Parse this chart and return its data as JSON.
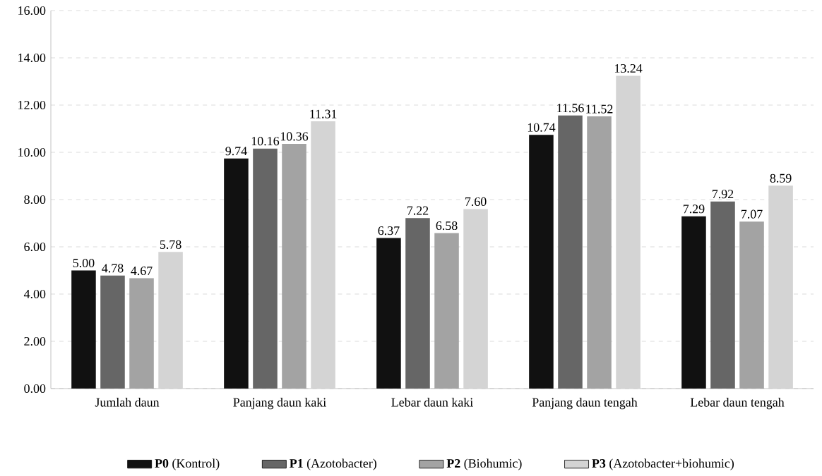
{
  "chart_data": {
    "type": "bar",
    "categories": [
      "Jumlah daun",
      "Panjang daun kaki",
      "Lebar daun kaki",
      "Panjang daun tengah",
      "Lebar daun tengah"
    ],
    "series": [
      {
        "name": "**P0** (Kontrol)",
        "color": "#111111",
        "values": [
          5.0,
          9.74,
          6.37,
          10.74,
          7.29
        ],
        "value_labels": [
          "5.00",
          "9.74",
          "6.37",
          "10.74",
          "7.29"
        ]
      },
      {
        "name": "**P1** (Azotobacter)",
        "color": "#666666",
        "values": [
          4.78,
          10.16,
          7.22,
          11.56,
          7.92
        ],
        "value_labels": [
          "4.78",
          "10.16",
          "7.22",
          "11.56",
          "7.92"
        ]
      },
      {
        "name": "**P2** (Biohumic)",
        "color": "#a3a3a3",
        "values": [
          4.67,
          10.36,
          6.58,
          11.52,
          7.07
        ],
        "value_labels": [
          "4.67",
          "10.36",
          "6.58",
          "11.52",
          "7.07"
        ]
      },
      {
        "name": "**P3** (Azotobacter+biohumic)",
        "color": "#d4d4d4",
        "values": [
          5.78,
          11.31,
          7.6,
          13.24,
          8.59
        ],
        "value_labels": [
          "5.78",
          "11.31",
          "7.60",
          "13.24",
          "8.59"
        ]
      }
    ],
    "ylim": [
      0,
      16
    ],
    "yticks": [
      {
        "value": 0,
        "label": "0.00"
      },
      {
        "value": 2,
        "label": "2.00"
      },
      {
        "value": 4,
        "label": "4.00"
      },
      {
        "value": 6,
        "label": "6.00"
      },
      {
        "value": 8,
        "label": "8.00"
      },
      {
        "value": 10,
        "label": "10.00"
      },
      {
        "value": 12,
        "label": "12.00"
      },
      {
        "value": 14,
        "label": "14.00"
      },
      {
        "value": 16,
        "label": "16.00"
      }
    ],
    "grid": "y",
    "legend": "bottom"
  }
}
